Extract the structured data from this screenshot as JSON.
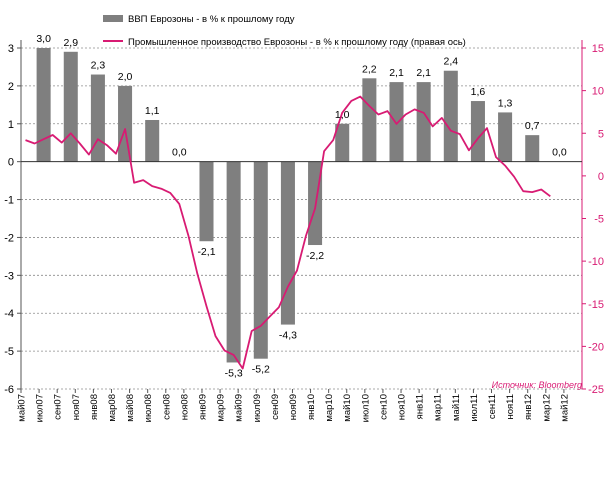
{
  "chart_data": {
    "type": "bar+line",
    "x": [
      "май07",
      "июл07",
      "сен07",
      "ноя07",
      "янв08",
      "мар08",
      "май08",
      "июл08",
      "сен08",
      "ноя08",
      "янв09",
      "мар09",
      "май09",
      "июл09",
      "сен09",
      "ноя09",
      "янв10",
      "мар10",
      "май10",
      "июл10",
      "сен10",
      "ноя10",
      "янв11",
      "мар11",
      "май11",
      "июл11",
      "сен11",
      "ноя11",
      "янв12",
      "мар12",
      "май12"
    ],
    "bar_series": {
      "name": "ВВП Еврозоны - в % к прошлому году",
      "axis": "left",
      "color": "#7f7f7f",
      "points": [
        {
          "x": "июл07",
          "value": 3.0,
          "label": "3,0"
        },
        {
          "x": "окт07",
          "value": 2.9,
          "label": "2,9"
        },
        {
          "x": "янв08",
          "value": 2.3,
          "label": "2,3"
        },
        {
          "x": "апр08",
          "value": 2.0,
          "label": "2,0"
        },
        {
          "x": "июл08",
          "value": 1.1,
          "label": "1,1"
        },
        {
          "x": "окт08",
          "value": 0.0,
          "label": "0,0"
        },
        {
          "x": "янв09",
          "value": -2.1,
          "label": "-2,1"
        },
        {
          "x": "апр09",
          "value": -5.3,
          "label": "-5,3"
        },
        {
          "x": "июл09",
          "value": -5.2,
          "label": "-5,2"
        },
        {
          "x": "окт09",
          "value": -4.3,
          "label": "-4,3"
        },
        {
          "x": "янв10",
          "value": -2.2,
          "label": "-2,2"
        },
        {
          "x": "апр10",
          "value": 1.0,
          "label": "1,0"
        },
        {
          "x": "июл10",
          "value": 2.2,
          "label": "2,2"
        },
        {
          "x": "окт10",
          "value": 2.1,
          "label": "2,1"
        },
        {
          "x": "янв11",
          "value": 2.1,
          "label": "2,1"
        },
        {
          "x": "апр11",
          "value": 2.4,
          "label": "2,4"
        },
        {
          "x": "июл11",
          "value": 1.6,
          "label": "1,6"
        },
        {
          "x": "окт11",
          "value": 1.3,
          "label": "1,3"
        },
        {
          "x": "янв12",
          "value": 0.7,
          "label": "0,7"
        },
        {
          "x": "апр12",
          "value": 0.0,
          "label": "0,0"
        }
      ]
    },
    "line_series": {
      "name": "Промышленное производство Еврозоны - в % к прошлому году (правая  ось)",
      "axis": "right",
      "color": "#d81b73",
      "points": [
        {
          "x": "май07",
          "value": 4.2
        },
        {
          "x": "июн07",
          "value": 3.8
        },
        {
          "x": "июл07",
          "value": 4.3
        },
        {
          "x": "авг07",
          "value": 4.8
        },
        {
          "x": "сен07",
          "value": 3.9
        },
        {
          "x": "окт07",
          "value": 5.0
        },
        {
          "x": "ноя07",
          "value": 3.8
        },
        {
          "x": "дек07",
          "value": 2.5
        },
        {
          "x": "янв08",
          "value": 4.3
        },
        {
          "x": "фев08",
          "value": 3.6
        },
        {
          "x": "мар08",
          "value": 2.6
        },
        {
          "x": "апр08",
          "value": 5.5
        },
        {
          "x": "май08",
          "value": -0.8
        },
        {
          "x": "июн08",
          "value": -0.5
        },
        {
          "x": "июл08",
          "value": -1.2
        },
        {
          "x": "авг08",
          "value": -1.5
        },
        {
          "x": "сен08",
          "value": -2.0
        },
        {
          "x": "окт08",
          "value": -3.3
        },
        {
          "x": "ноя08",
          "value": -7.0
        },
        {
          "x": "дек08",
          "value": -11.5
        },
        {
          "x": "янв09",
          "value": -15.3
        },
        {
          "x": "фев09",
          "value": -18.8
        },
        {
          "x": "мар09",
          "value": -20.5
        },
        {
          "x": "апр09",
          "value": -21.0
        },
        {
          "x": "май09",
          "value": -22.6
        },
        {
          "x": "июн09",
          "value": -18.2
        },
        {
          "x": "июл09",
          "value": -17.6
        },
        {
          "x": "авг09",
          "value": -16.5
        },
        {
          "x": "сен09",
          "value": -15.4
        },
        {
          "x": "окт09",
          "value": -13.0
        },
        {
          "x": "ноя09",
          "value": -11.1
        },
        {
          "x": "дек09",
          "value": -7.0
        },
        {
          "x": "янв10",
          "value": -3.8
        },
        {
          "x": "фев10",
          "value": 2.9
        },
        {
          "x": "мар10",
          "value": 4.2
        },
        {
          "x": "апр10",
          "value": 7.4
        },
        {
          "x": "май10",
          "value": 8.8
        },
        {
          "x": "июн10",
          "value": 9.3
        },
        {
          "x": "июл10",
          "value": 8.2
        },
        {
          "x": "авг10",
          "value": 7.2
        },
        {
          "x": "сен10",
          "value": 7.6
        },
        {
          "x": "окт10",
          "value": 6.1
        },
        {
          "x": "ноя10",
          "value": 7.2
        },
        {
          "x": "дек10",
          "value": 7.8
        },
        {
          "x": "янв11",
          "value": 7.4
        },
        {
          "x": "фев11",
          "value": 5.8
        },
        {
          "x": "мар11",
          "value": 6.8
        },
        {
          "x": "апр11",
          "value": 5.3
        },
        {
          "x": "май11",
          "value": 4.9
        },
        {
          "x": "июн11",
          "value": 3.0
        },
        {
          "x": "июл11",
          "value": 4.4
        },
        {
          "x": "авг11",
          "value": 5.6
        },
        {
          "x": "сен11",
          "value": 2.2
        },
        {
          "x": "окт11",
          "value": 1.2
        },
        {
          "x": "ноя11",
          "value": -0.1
        },
        {
          "x": "дек11",
          "value": -1.8
        },
        {
          "x": "янв12",
          "value": -1.9
        },
        {
          "x": "фев12",
          "value": -1.6
        },
        {
          "x": "мар12",
          "value": -2.4
        }
      ]
    },
    "left_axis": {
      "min": -6,
      "max": 3,
      "ticks": [
        -6,
        -5,
        -4,
        -3,
        -2,
        -1,
        0,
        1,
        2,
        3
      ],
      "tick_labels": [
        "-6",
        "-5",
        "-4",
        "-3",
        "-2",
        "-1",
        "0",
        "1",
        "2",
        "3"
      ]
    },
    "right_axis": {
      "min": -25,
      "max": 15,
      "ticks": [
        -25,
        -20,
        -15,
        -10,
        -5,
        0,
        5,
        10,
        15
      ],
      "tick_labels": [
        "-25",
        "-20",
        "-15",
        "-10",
        "-5",
        "0",
        "5",
        "10",
        "15"
      ]
    },
    "gridlines": "dashed horizontal",
    "legend": {
      "placement": "top-center",
      "items": [
        {
          "label": "ВВП Еврозоны - в % к прошлому году",
          "kind": "bar",
          "color": "#7f7f7f"
        },
        {
          "label": "Промышленное производство Еврозоны - в % к прошлому году (правая  ось)",
          "kind": "line",
          "color": "#d81b73"
        }
      ]
    },
    "source": "Источник: Bloomberg"
  }
}
